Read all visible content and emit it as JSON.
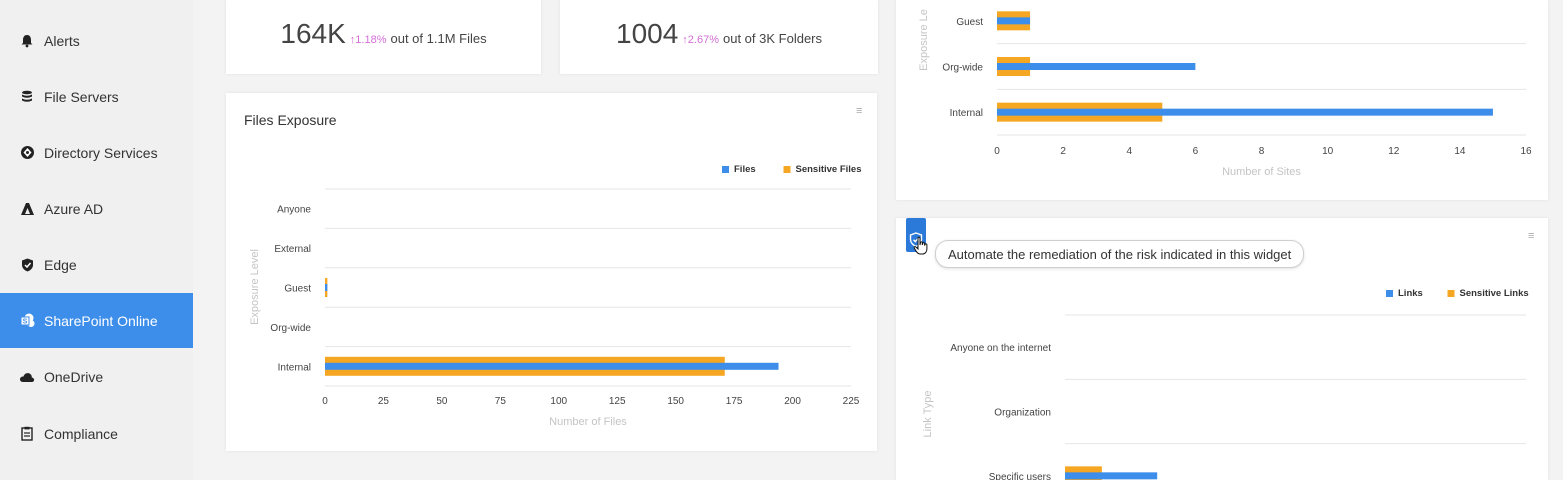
{
  "sidebar": {
    "items": [
      {
        "label": "Alerts",
        "icon": "bell-icon",
        "active": false
      },
      {
        "label": "File Servers",
        "icon": "database-icon",
        "active": false
      },
      {
        "label": "Directory Services",
        "icon": "directory-icon",
        "active": false
      },
      {
        "label": "Azure AD",
        "icon": "azure-icon",
        "active": false
      },
      {
        "label": "Edge",
        "icon": "shield-icon",
        "active": false
      },
      {
        "label": "SharePoint Online",
        "icon": "sharepoint-icon",
        "active": true
      },
      {
        "label": "OneDrive",
        "icon": "cloud-icon",
        "active": false
      },
      {
        "label": "Compliance",
        "icon": "clipboard-icon",
        "active": false
      }
    ]
  },
  "stats": [
    {
      "value": "164K",
      "change": "1.18%",
      "rest": "out of 1.1M Files"
    },
    {
      "value": "1004",
      "change": "2.67%",
      "rest": "out of 3K Folders"
    }
  ],
  "colors": {
    "primary": "#3d8eea",
    "secondary": "#f5a623",
    "accent_pct": "#d36fd6"
  },
  "tooltip": "Automate the remediation of the risk indicated in this widget",
  "chart_data": [
    {
      "type": "bar",
      "orientation": "horizontal",
      "title": "Files Exposure",
      "categories": [
        "Anyone",
        "External",
        "Guest",
        "Org-wide",
        "Internal"
      ],
      "series": [
        {
          "name": "Files",
          "values": [
            0,
            0,
            1,
            0,
            194
          ]
        },
        {
          "name": "Sensitive Files",
          "values": [
            0,
            0,
            1,
            0,
            171
          ]
        }
      ],
      "xlabel": "Number of Files",
      "ylabel": "Exposure Level",
      "xlim": [
        0,
        225
      ],
      "xticks": [
        "0",
        "25",
        "50",
        "75",
        "100",
        "125",
        "150",
        "175",
        "200",
        "225"
      ],
      "legend": "top-right",
      "grid": true
    },
    {
      "type": "bar",
      "orientation": "horizontal",
      "title": "",
      "categories": [
        "Guest",
        "Org-wide",
        "Internal"
      ],
      "series": [
        {
          "name": "",
          "values": [
            1,
            6,
            15
          ]
        },
        {
          "name": "",
          "values": [
            1,
            1,
            5
          ]
        }
      ],
      "xlabel": "Number of Sites",
      "ylabel": "Exposure Le",
      "xlim": [
        0,
        16
      ],
      "xticks": [
        "0",
        "2",
        "4",
        "6",
        "8",
        "10",
        "12",
        "14",
        "16"
      ],
      "grid": true
    },
    {
      "type": "bar",
      "orientation": "horizontal",
      "title": "",
      "categories": [
        "Anyone on the internet",
        "Organization",
        "Specific users"
      ],
      "series": [
        {
          "name": "Links",
          "values": [
            0,
            0,
            10
          ]
        },
        {
          "name": "Sensitive Links",
          "values": [
            0,
            0,
            4
          ]
        }
      ],
      "ylabel": "Link Type",
      "legend": "top-right",
      "grid": true
    }
  ]
}
